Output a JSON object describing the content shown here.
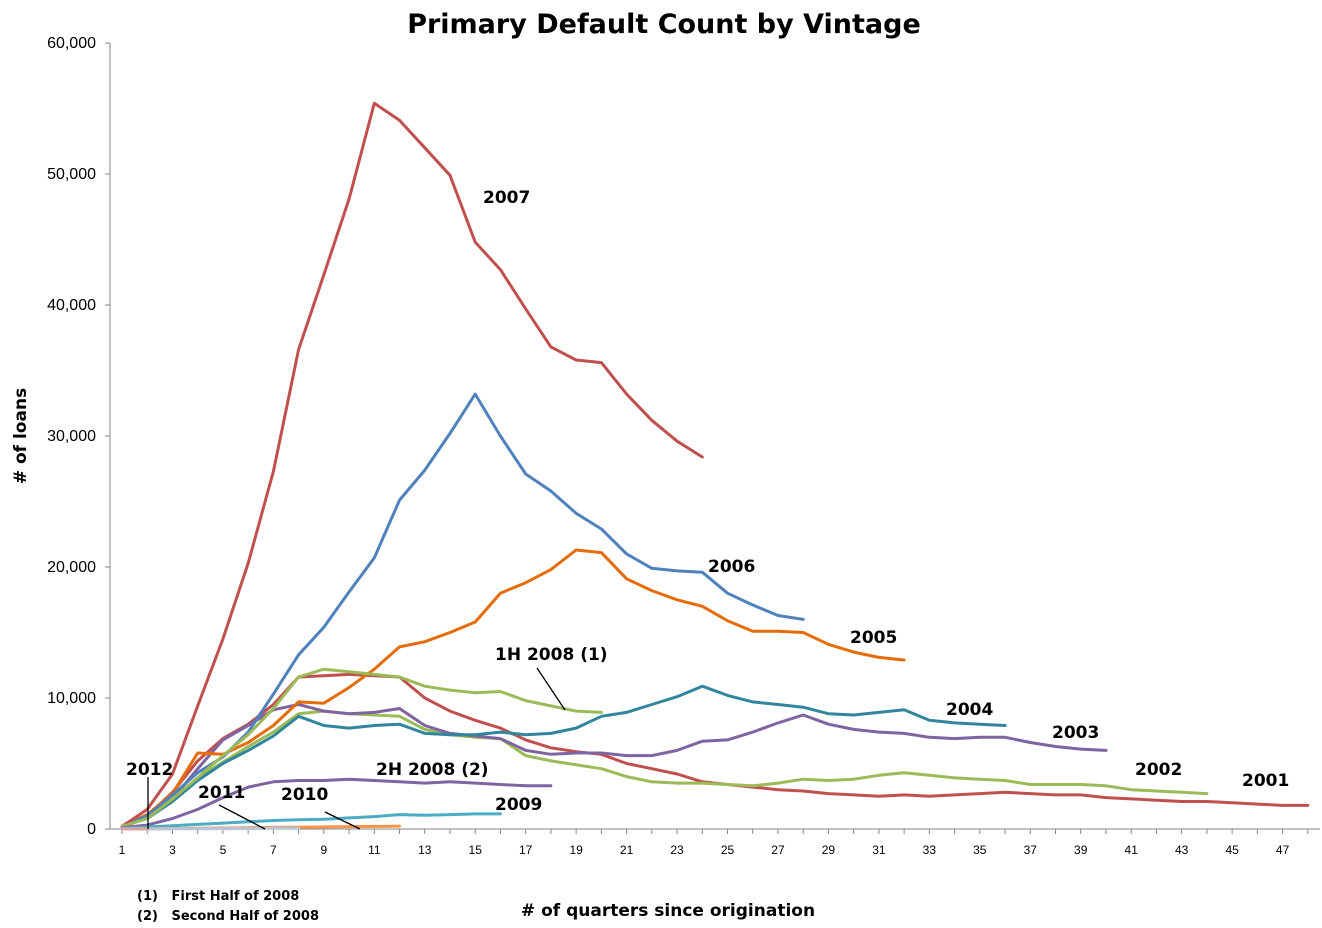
{
  "chart_data": {
    "type": "line",
    "title": "Primary Default Count by Vintage",
    "xlabel": "# of quarters since origination",
    "ylabel": "# of loans",
    "ylim": [
      0,
      60000
    ],
    "xlim": [
      1,
      48
    ],
    "yticks": [
      "0",
      "10,000",
      "20,000",
      "30,000",
      "40,000",
      "50,000",
      "60,000"
    ],
    "xticks": [
      "1",
      "3",
      "5",
      "7",
      "9",
      "11",
      "13",
      "15",
      "17",
      "19",
      "21",
      "23",
      "25",
      "27",
      "29",
      "31",
      "33",
      "35",
      "37",
      "39",
      "41",
      "43",
      "45",
      "47"
    ],
    "grid": false,
    "legend": "inline labels",
    "footnotes": [
      "(1)   First Half of 2008",
      "(2)   Second Half of 2008"
    ],
    "series": [
      {
        "name": "2001",
        "label": "2001",
        "color": "#c0504d",
        "values": [
          200,
          1000,
          2800,
          5200,
          6900,
          8000,
          9500,
          11600,
          11700,
          11800,
          11700,
          11600,
          10000,
          9000,
          8300,
          7700,
          6800,
          6200,
          5900,
          5700,
          5000,
          4600,
          4200,
          3600,
          3400,
          3200,
          3000,
          2900,
          2700,
          2600,
          2500,
          2600,
          2500,
          2600,
          2700,
          2800,
          2700,
          2600,
          2600,
          2400,
          2300,
          2200,
          2100,
          2100,
          2000,
          1900,
          1800,
          1800
        ]
      },
      {
        "name": "2002",
        "label": "2002",
        "color": "#9bbb59",
        "values": [
          200,
          800,
          2200,
          3900,
          5100,
          6300,
          7400,
          8800,
          9000,
          8800,
          8700,
          8600,
          7600,
          7200,
          7000,
          6900,
          5600,
          5200,
          4900,
          4600,
          4000,
          3600,
          3500,
          3500,
          3400,
          3300,
          3500,
          3800,
          3700,
          3800,
          4100,
          4300,
          4100,
          3900,
          3800,
          3700,
          3400,
          3400,
          3400,
          3300,
          3000,
          2900,
          2800,
          2700
        ]
      },
      {
        "name": "2003",
        "label": "2003",
        "color": "#8064a2",
        "values": [
          200,
          900,
          2300,
          4600,
          6800,
          7900,
          9100,
          9500,
          9000,
          8800,
          8900,
          9200,
          7900,
          7300,
          7100,
          6900,
          6000,
          5700,
          5800,
          5800,
          5600,
          5600,
          6000,
          6700,
          6800,
          7400,
          8100,
          8700,
          8000,
          7600,
          7400,
          7300,
          7000,
          6900,
          7000,
          7000,
          6600,
          6300,
          6100,
          6000
        ]
      },
      {
        "name": "2004",
        "label": "2004",
        "color": "#31859c",
        "values": [
          200,
          800,
          2100,
          3700,
          5000,
          6000,
          7100,
          8600,
          7900,
          7700,
          7900,
          8000,
          7300,
          7200,
          7200,
          7400,
          7200,
          7300,
          7700,
          8600,
          8900,
          9500,
          10100,
          10900,
          10200,
          9700,
          9500,
          9300,
          8800,
          8700,
          8900,
          9100,
          8300,
          8100,
          8000,
          7900
        ]
      },
      {
        "name": "2005",
        "label": "2005",
        "color": "#e46c0a",
        "values": [
          200,
          1100,
          2700,
          5800,
          5700,
          6600,
          7900,
          9700,
          9600,
          10800,
          12200,
          13900,
          14300,
          15000,
          15800,
          18000,
          18800,
          19800,
          21300,
          21100,
          19100,
          18200,
          17500,
          17000,
          15900,
          15100,
          15100,
          15000,
          14100,
          13500,
          13100,
          12900
        ]
      },
      {
        "name": "2006",
        "label": "2006",
        "color": "#4f81bd",
        "values": [
          200,
          1000,
          2600,
          4300,
          5500,
          7400,
          10300,
          13300,
          15400,
          18100,
          20700,
          25100,
          27400,
          30200,
          33200,
          30000,
          27100,
          25800,
          24100,
          22900,
          21000,
          19900,
          19700,
          19600,
          18000,
          17100,
          16300,
          16000
        ]
      },
      {
        "name": "2007",
        "label": "2007",
        "color": "#c0504d",
        "values": [
          200,
          1500,
          4200,
          9400,
          14500,
          20300,
          27300,
          36600,
          42300,
          48100,
          55400,
          54100,
          52000,
          49900,
          44800,
          42700,
          39700,
          36800,
          35800,
          35600,
          33200,
          31200,
          29600,
          28400
        ]
      },
      {
        "name": "1H 2008",
        "label": "1H 2008 (1)",
        "color": "#9bbb59",
        "values": [
          200,
          800,
          2300,
          3900,
          5600,
          7200,
          9200,
          11600,
          12200,
          12000,
          11800,
          11600,
          10900,
          10600,
          10400,
          10500,
          9800,
          9400,
          9000,
          8900
        ]
      },
      {
        "name": "2H 2008",
        "label": "2H 2008 (2)",
        "color": "#8064a2",
        "values": [
          100,
          300,
          800,
          1500,
          2400,
          3200,
          3600,
          3700,
          3700,
          3800,
          3700,
          3600,
          3500,
          3600,
          3500,
          3400,
          3300,
          3300
        ]
      },
      {
        "name": "2009",
        "label": "2009",
        "color": "#4bacc6",
        "values": [
          50,
          150,
          250,
          350,
          450,
          550,
          650,
          700,
          750,
          850,
          950,
          1100,
          1050,
          1100,
          1150,
          1150
        ]
      },
      {
        "name": "2010",
        "label": "2010",
        "color": "#f79646",
        "values": [
          10,
          20,
          40,
          60,
          80,
          100,
          120,
          140,
          160,
          180,
          200,
          220
        ]
      },
      {
        "name": "2011",
        "label": "2011",
        "color": "#b7c4d9",
        "values": [
          5,
          10,
          15,
          20,
          30,
          40,
          50,
          60
        ]
      },
      {
        "name": "2012",
        "label": "2012",
        "color": "#dca0a0",
        "values": [
          5,
          10
        ]
      }
    ],
    "label_positions": {
      "2007": [
        20,
        54000
      ],
      "2006": [
        25,
        28000
      ],
      "2005": [
        29,
        29000
      ],
      "2004": [
        35.5,
        27000
      ],
      "2003": [
        37,
        28500
      ],
      "2002": [
        38,
        28500
      ],
      "2001": [
        39,
        28500
      ]
    }
  }
}
